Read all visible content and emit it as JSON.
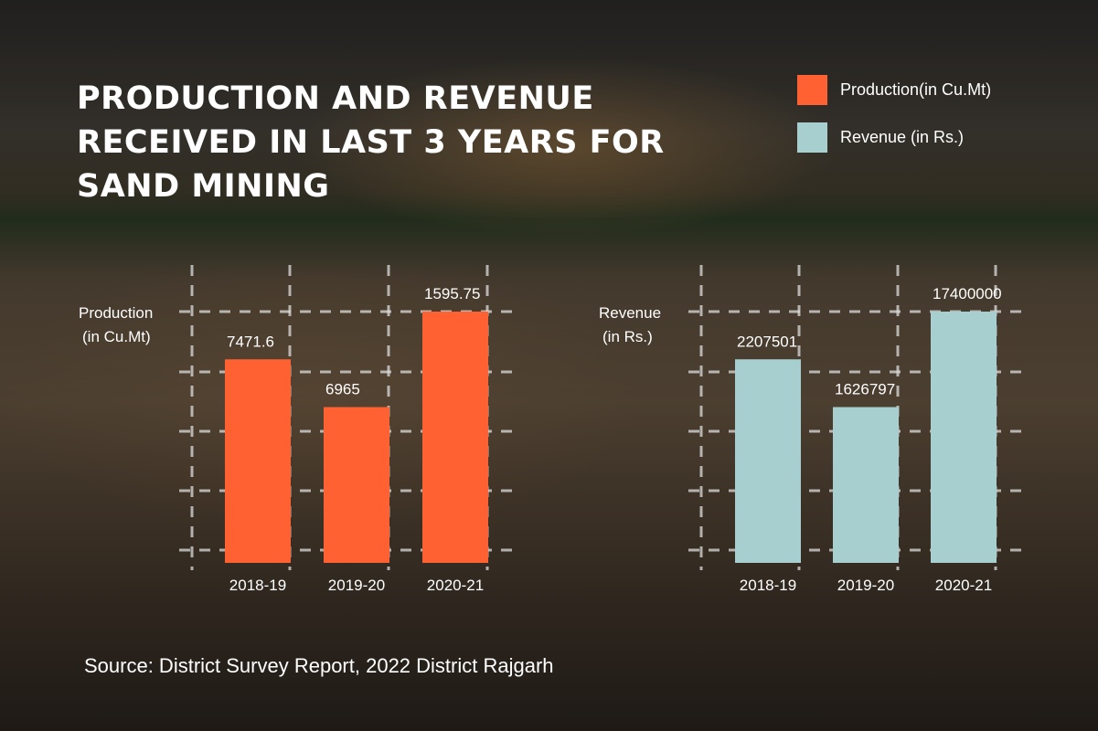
{
  "title": "PRODUCTION AND REVENUE RECEIVED IN LAST 3 YEARS FOR SAND MINING",
  "legend": [
    {
      "label": "Production(in Cu.Mt)",
      "color": "#ff6133"
    },
    {
      "label": "Revenue (in Rs.)",
      "color": "#a8cfd0"
    }
  ],
  "source": "Source: District Survey Report, 2022 District Rajgarh",
  "chart_data": [
    {
      "type": "bar",
      "title": "",
      "ylabel": [
        "Production",
        "(in Cu.Mt)"
      ],
      "xlabel": "",
      "categories": [
        "2018-19",
        "2019-20",
        "2020-21"
      ],
      "values": [
        7471.6,
        6965,
        1595.75
      ],
      "value_labels": [
        "7471.6",
        "6965",
        "1595.75"
      ],
      "display_levels": [
        0.81,
        0.62,
        1.0
      ],
      "color": "#ff6133",
      "grid": true
    },
    {
      "type": "bar",
      "title": "",
      "ylabel": [
        "Revenue",
        "(in Rs.)"
      ],
      "xlabel": "",
      "categories": [
        "2018-19",
        "2019-20",
        "2020-21"
      ],
      "values": [
        2207501,
        1626797,
        17400000
      ],
      "value_labels": [
        "2207501",
        "1626797",
        "17400000"
      ],
      "display_levels": [
        0.81,
        0.62,
        1.0
      ],
      "color": "#a8cfd0",
      "grid": true
    }
  ]
}
